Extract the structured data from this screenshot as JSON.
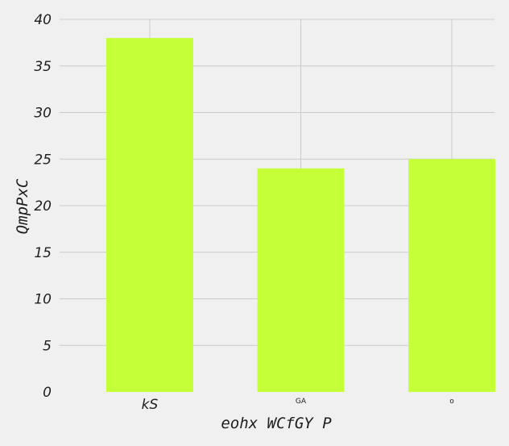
{
  "chart_data": {
    "type": "bar",
    "categories": [
      "kS",
      "GA",
      "o"
    ],
    "values": [
      38,
      24,
      25
    ],
    "title": "",
    "xlabel": "eohx WCfGY P",
    "ylabel": "QmpPxC",
    "ylim": [
      0,
      40
    ],
    "yticks": [
      0,
      5,
      10,
      15,
      20,
      25,
      30,
      35,
      40
    ],
    "grid": true,
    "colors": {
      "bar": "#c4ff38",
      "background": "#f0f0f0",
      "grid": "#cbcbcb",
      "text": "#1e1e1e"
    }
  }
}
